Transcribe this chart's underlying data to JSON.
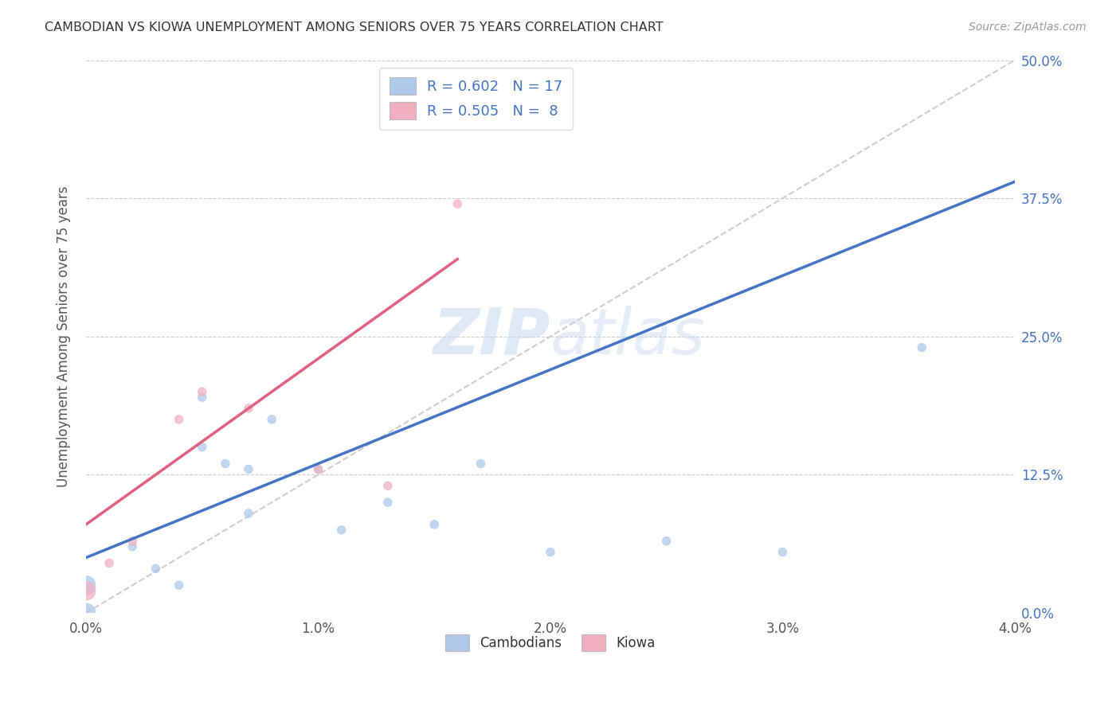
{
  "title": "CAMBODIAN VS KIOWA UNEMPLOYMENT AMONG SENIORS OVER 75 YEARS CORRELATION CHART",
  "source": "Source: ZipAtlas.com",
  "ylabel": "Unemployment Among Seniors over 75 years",
  "watermark": "ZIPatlas",
  "legend_cambodians_R": "0.602",
  "legend_cambodians_N": "17",
  "legend_kiowa_R": "0.505",
  "legend_kiowa_N": "8",
  "cambodian_color": "#adc8e8",
  "kiowa_color": "#f0afc0",
  "cambodian_line_color": "#4472c4",
  "kiowa_line_color": "#e06080",
  "diagonal_color": "#cccccc",
  "xlim": [
    0.0,
    0.04
  ],
  "ylim": [
    0.0,
    0.5
  ],
  "xtick_vals": [
    0.0,
    0.01,
    0.02,
    0.03,
    0.04
  ],
  "xtick_labels": [
    "0.0%",
    "1.0%",
    "2.0%",
    "3.0%",
    "4.0%"
  ],
  "ytick_vals": [
    0.0,
    0.125,
    0.25,
    0.375,
    0.5
  ],
  "ytick_labels": [
    "0.0%",
    "12.5%",
    "25.0%",
    "37.5%",
    "50.0%"
  ],
  "cambodians_x": [
    0.0,
    0.0,
    0.002,
    0.003,
    0.004,
    0.005,
    0.005,
    0.006,
    0.007,
    0.007,
    0.008,
    0.01,
    0.011,
    0.013,
    0.015,
    0.017,
    0.02,
    0.025,
    0.03,
    0.036
  ],
  "cambodians_y": [
    0.0,
    0.025,
    0.06,
    0.04,
    0.025,
    0.15,
    0.195,
    0.135,
    0.13,
    0.09,
    0.175,
    0.13,
    0.075,
    0.1,
    0.08,
    0.135,
    0.055,
    0.065,
    0.055,
    0.24
  ],
  "cambodian_sizes": [
    300,
    300,
    60,
    60,
    60,
    60,
    60,
    60,
    60,
    60,
    60,
    60,
    60,
    60,
    60,
    60,
    60,
    60,
    60,
    60
  ],
  "kiowa_x": [
    0.0,
    0.001,
    0.002,
    0.004,
    0.005,
    0.007,
    0.01,
    0.013,
    0.016
  ],
  "kiowa_y": [
    0.02,
    0.045,
    0.065,
    0.175,
    0.2,
    0.185,
    0.13,
    0.115,
    0.37
  ],
  "kiowa_sizes": [
    300,
    60,
    60,
    60,
    60,
    60,
    60,
    60,
    60
  ],
  "camb_line_x0": 0.0,
  "camb_line_y0": 0.05,
  "camb_line_x1": 0.04,
  "camb_line_y1": 0.39,
  "kiowa_line_x0": 0.0,
  "kiowa_line_y0": 0.08,
  "kiowa_line_x1": 0.016,
  "kiowa_line_y1": 0.32,
  "legend_bottom": [
    "Cambodians",
    "Kiowa"
  ]
}
